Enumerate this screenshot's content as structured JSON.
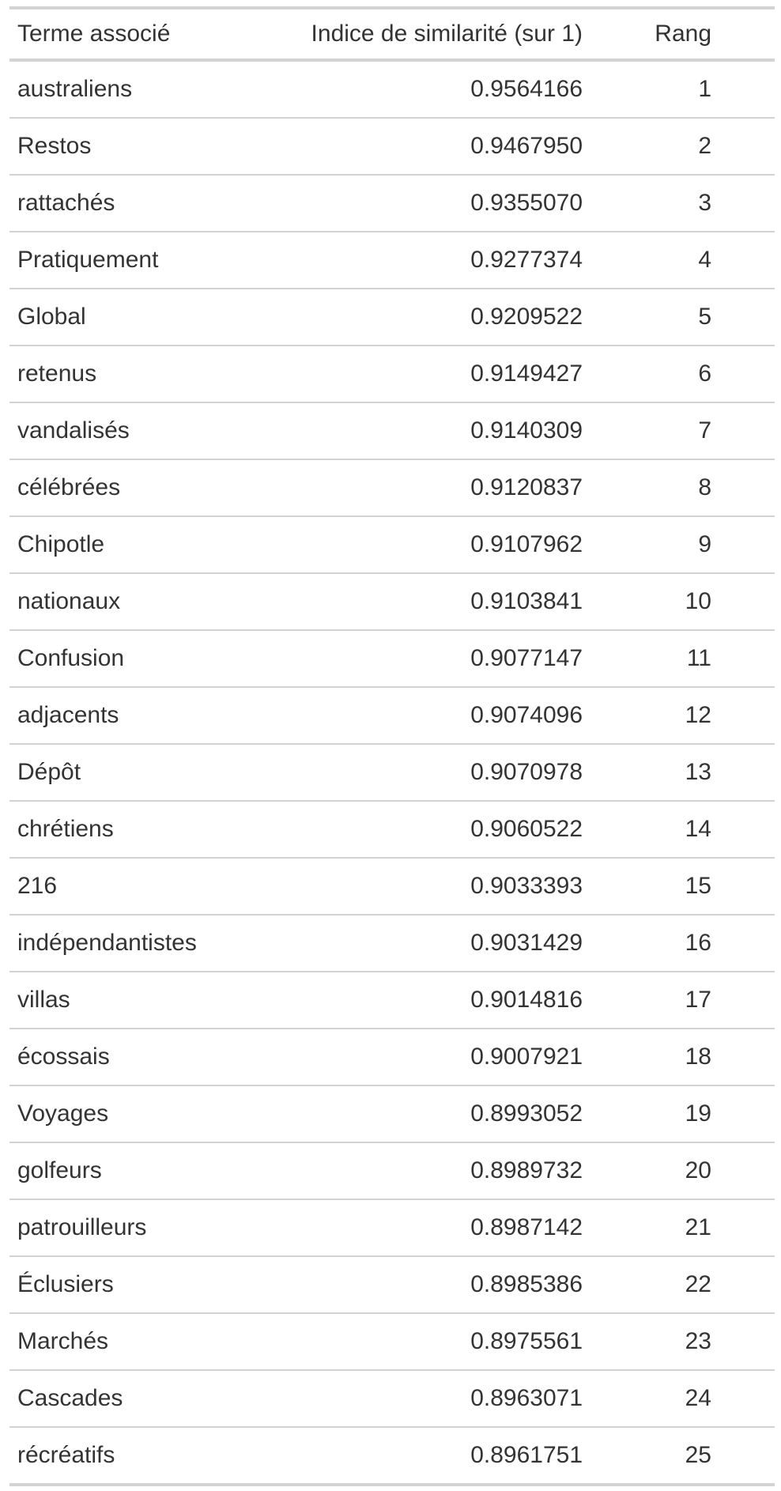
{
  "table": {
    "columns": {
      "term": "Terme associé",
      "score": "Indice de similarité (sur 1)",
      "rank": "Rang"
    },
    "rows": [
      {
        "term": "australiens",
        "score": "0.9564166",
        "rank": "1"
      },
      {
        "term": "Restos",
        "score": "0.9467950",
        "rank": "2"
      },
      {
        "term": "rattachés",
        "score": "0.9355070",
        "rank": "3"
      },
      {
        "term": "Pratiquement",
        "score": "0.9277374",
        "rank": "4"
      },
      {
        "term": "Global",
        "score": "0.9209522",
        "rank": "5"
      },
      {
        "term": "retenus",
        "score": "0.9149427",
        "rank": "6"
      },
      {
        "term": "vandalisés",
        "score": "0.9140309",
        "rank": "7"
      },
      {
        "term": "célébrées",
        "score": "0.9120837",
        "rank": "8"
      },
      {
        "term": "Chipotle",
        "score": "0.9107962",
        "rank": "9"
      },
      {
        "term": "nationaux",
        "score": "0.9103841",
        "rank": "10"
      },
      {
        "term": "Confusion",
        "score": "0.9077147",
        "rank": "11"
      },
      {
        "term": "adjacents",
        "score": "0.9074096",
        "rank": "12"
      },
      {
        "term": "Dépôt",
        "score": "0.9070978",
        "rank": "13"
      },
      {
        "term": "chrétiens",
        "score": "0.9060522",
        "rank": "14"
      },
      {
        "term": "216",
        "score": "0.9033393",
        "rank": "15"
      },
      {
        "term": "indépendantistes",
        "score": "0.9031429",
        "rank": "16"
      },
      {
        "term": "villas",
        "score": "0.9014816",
        "rank": "17"
      },
      {
        "term": "écossais",
        "score": "0.9007921",
        "rank": "18"
      },
      {
        "term": "Voyages",
        "score": "0.8993052",
        "rank": "19"
      },
      {
        "term": "golfeurs",
        "score": "0.8989732",
        "rank": "20"
      },
      {
        "term": "patrouilleurs",
        "score": "0.8987142",
        "rank": "21"
      },
      {
        "term": "Éclusiers",
        "score": "0.8985386",
        "rank": "22"
      },
      {
        "term": "Marchés",
        "score": "0.8975561",
        "rank": "23"
      },
      {
        "term": "Cascades",
        "score": "0.8963071",
        "rank": "24"
      },
      {
        "term": "récréatifs",
        "score": "0.8961751",
        "rank": "25"
      }
    ]
  }
}
